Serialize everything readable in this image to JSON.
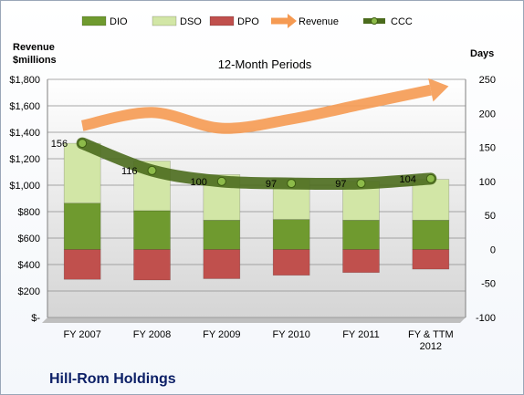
{
  "chart_data": {
    "type": "bar",
    "title": "Hill-Rom Holdings",
    "subtitle": "12-Month Periods",
    "y_left_label": [
      "Revenue",
      "$millions"
    ],
    "y_right_label": "Days",
    "y_left_range": [
      0,
      1800
    ],
    "y_left_ticks": [
      "$-",
      "$200",
      "$400",
      "$600",
      "$800",
      "$1,000",
      "$1,200",
      "$1,400",
      "$1,600",
      "$1,800"
    ],
    "y_right_range": [
      -100,
      250
    ],
    "y_right_ticks": [
      "-100",
      "-50",
      "0",
      "50",
      "100",
      "150",
      "200",
      "250"
    ],
    "categories": [
      [
        "FY 2007"
      ],
      [
        "FY 2008"
      ],
      [
        "FY 2009"
      ],
      [
        "FY 2010"
      ],
      [
        "FY 2011"
      ],
      [
        "FY & TTM",
        "2012"
      ]
    ],
    "series": [
      {
        "name": "DIO",
        "axis": "right",
        "color": "#6f9a2f",
        "values": [
          68,
          57,
          43,
          44,
          43,
          43
        ]
      },
      {
        "name": "DSO",
        "axis": "right",
        "color": "#d2e6a6",
        "values": [
          88,
          73,
          67,
          59,
          57,
          60
        ]
      },
      {
        "name": "DPO",
        "axis": "right",
        "color": "#c0504d",
        "values": [
          -44,
          -45,
          -43,
          -38,
          -34,
          -29
        ]
      },
      {
        "name": "Revenue",
        "axis": "left",
        "color": "#f59a52",
        "values": [
          1450,
          1550,
          1430,
          1500,
          1610,
          1720
        ]
      },
      {
        "name": "CCC",
        "axis": "right",
        "color": "#4b6b1d",
        "values": [
          156,
          116,
          100,
          97,
          97,
          104
        ]
      }
    ],
    "legend": [
      "DIO",
      "DSO",
      "DPO",
      "Revenue",
      "CCC"
    ],
    "legend_position": "top",
    "grid": true
  }
}
